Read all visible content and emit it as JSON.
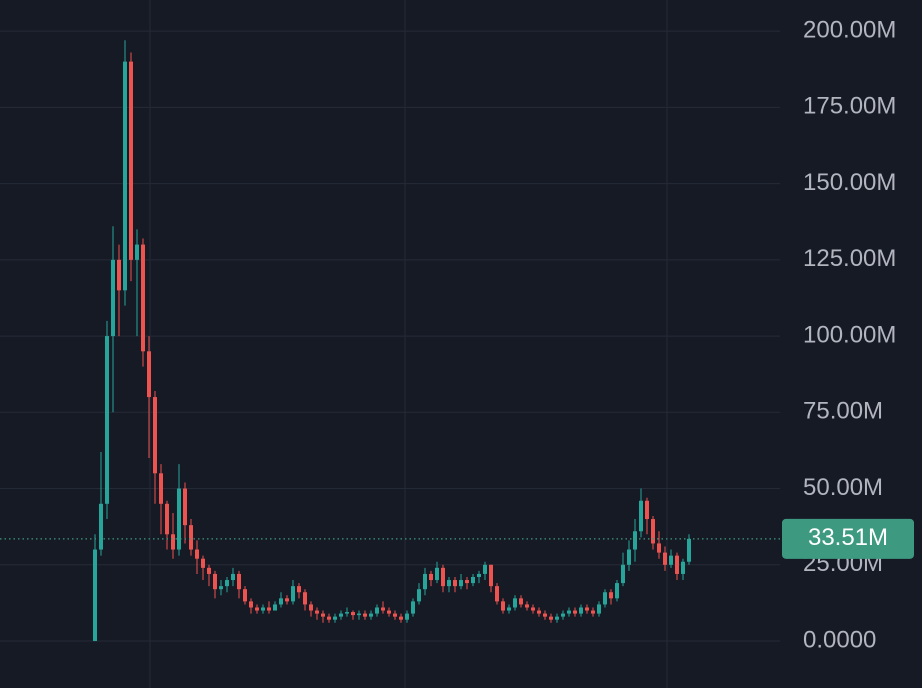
{
  "chart_data": {
    "type": "candlestick",
    "up_color": "#26a69a",
    "down_color": "#ef5350",
    "grid": true,
    "ylim": [
      -15.4,
      210.2
    ],
    "yticks": [
      {
        "value": 0,
        "label": "0.0000"
      },
      {
        "value": 25,
        "label": "25.00M"
      },
      {
        "value": 50,
        "label": "50.00M"
      },
      {
        "value": 75,
        "label": "75.00M"
      },
      {
        "value": 100,
        "label": "100.00M"
      },
      {
        "value": 125,
        "label": "125.00M"
      },
      {
        "value": 150,
        "label": "150.00M"
      },
      {
        "value": 175,
        "label": "175.00M"
      },
      {
        "value": 200,
        "label": "200.00M"
      }
    ],
    "last_price": {
      "value": 33.51,
      "label": "33.51M"
    },
    "ohlc": [
      [
        0,
        35,
        0,
        30
      ],
      [
        30,
        62,
        28,
        45
      ],
      [
        45,
        105,
        40,
        100
      ],
      [
        100,
        136,
        75,
        125
      ],
      [
        125,
        130,
        100,
        115
      ],
      [
        115,
        197,
        110,
        190
      ],
      [
        190,
        193,
        118,
        125
      ],
      [
        125,
        135,
        100,
        130
      ],
      [
        130,
        132,
        90,
        95
      ],
      [
        95,
        100,
        60,
        80
      ],
      [
        80,
        82,
        45,
        55
      ],
      [
        55,
        58,
        35,
        45
      ],
      [
        45,
        46,
        30,
        35
      ],
      [
        35,
        42,
        27,
        30
      ],
      [
        30,
        58,
        28,
        50
      ],
      [
        50,
        52,
        32,
        38
      ],
      [
        38,
        40,
        28,
        30
      ],
      [
        30,
        33,
        22,
        27
      ],
      [
        27,
        28,
        20,
        24
      ],
      [
        24,
        25,
        18,
        22
      ],
      [
        22,
        23,
        14,
        17
      ],
      [
        17,
        20,
        15,
        18
      ],
      [
        18,
        21,
        16,
        20
      ],
      [
        20,
        24,
        18,
        22
      ],
      [
        22,
        23,
        14,
        17
      ],
      [
        17,
        18,
        12,
        13
      ],
      [
        13,
        14,
        9,
        11
      ],
      [
        11,
        12,
        9,
        10
      ],
      [
        10,
        12,
        9,
        11
      ],
      [
        11,
        13,
        9,
        10
      ],
      [
        10,
        13,
        10,
        12
      ],
      [
        12,
        16,
        11,
        14
      ],
      [
        14,
        15,
        12,
        13
      ],
      [
        13,
        20,
        12,
        18
      ],
      [
        18,
        19,
        14,
        16
      ],
      [
        16,
        17,
        10,
        12
      ],
      [
        12,
        13,
        8,
        10
      ],
      [
        10,
        11,
        7,
        9
      ],
      [
        9,
        10,
        6,
        8
      ],
      [
        8,
        9,
        6,
        7
      ],
      [
        7,
        9,
        6,
        8
      ],
      [
        8,
        10,
        7,
        9
      ],
      [
        9,
        11,
        8,
        9.5
      ],
      [
        9.5,
        10,
        7,
        8.5
      ],
      [
        8.5,
        10,
        7,
        9
      ],
      [
        9,
        10,
        7,
        8
      ],
      [
        8,
        10,
        7,
        9
      ],
      [
        9,
        12,
        8,
        11
      ],
      [
        11,
        13,
        9,
        10
      ],
      [
        10,
        11,
        8,
        9
      ],
      [
        9,
        10,
        7,
        8
      ],
      [
        8,
        9,
        6,
        7
      ],
      [
        7,
        10,
        6,
        9
      ],
      [
        9,
        14,
        8,
        13
      ],
      [
        13,
        19,
        12,
        17
      ],
      [
        17,
        24,
        15,
        22
      ],
      [
        22,
        23,
        18,
        20
      ],
      [
        20,
        26,
        19,
        24
      ],
      [
        24,
        25,
        16,
        18
      ],
      [
        18,
        21,
        16,
        20
      ],
      [
        20,
        21,
        16,
        18
      ],
      [
        18,
        22,
        17,
        20
      ],
      [
        20,
        21,
        17,
        19
      ],
      [
        19,
        22,
        18,
        21
      ],
      [
        21,
        23,
        19,
        22
      ],
      [
        22,
        26,
        20,
        25
      ],
      [
        25,
        25,
        16,
        18
      ],
      [
        18,
        19,
        12,
        13
      ],
      [
        13,
        14,
        9,
        10
      ],
      [
        10,
        12,
        9,
        11
      ],
      [
        11,
        15,
        10,
        14
      ],
      [
        14,
        15,
        11,
        12
      ],
      [
        12,
        13,
        10,
        11
      ],
      [
        11,
        12,
        9,
        10
      ],
      [
        10,
        11,
        8,
        9
      ],
      [
        9,
        10,
        7,
        8
      ],
      [
        8,
        9,
        6,
        7
      ],
      [
        7,
        9,
        6,
        8
      ],
      [
        8,
        10,
        7,
        9
      ],
      [
        9,
        11,
        8,
        10
      ],
      [
        10,
        11,
        8,
        9
      ],
      [
        9,
        12,
        8,
        11
      ],
      [
        11,
        12,
        9,
        10
      ],
      [
        10,
        11,
        8,
        9
      ],
      [
        9,
        13,
        8,
        12
      ],
      [
        12,
        17,
        11,
        16
      ],
      [
        16,
        17,
        12,
        14
      ],
      [
        14,
        20,
        13,
        19
      ],
      [
        19,
        29,
        18,
        25
      ],
      [
        25,
        33,
        23,
        30
      ],
      [
        30,
        40,
        26,
        36
      ],
      [
        36,
        50,
        34,
        46
      ],
      [
        46,
        47,
        35,
        40
      ],
      [
        40,
        41,
        30,
        32
      ],
      [
        32,
        36,
        27,
        29
      ],
      [
        29,
        31,
        23,
        25
      ],
      [
        25,
        30,
        24,
        28
      ],
      [
        28,
        29,
        20,
        22
      ],
      [
        22,
        27,
        20,
        26
      ],
      [
        26,
        35,
        25,
        33.51
      ]
    ]
  }
}
